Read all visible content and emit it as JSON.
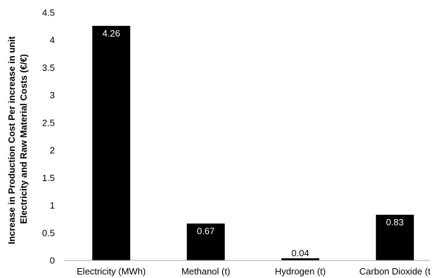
{
  "chart_data": {
    "type": "bar",
    "title": "",
    "xlabel": "",
    "ylabel": "Increase in Production Cost Per increase in unit Electricity and Raw Material Costs  (€/€)",
    "ylabel_lines": [
      "Increase in Production Cost Per increase in unit",
      "Electricity and Raw Material Costs  (€/€)"
    ],
    "categories": [
      "Electricity (MWh)",
      "Methanol (t)",
      "Hydrogen (t)",
      "Carbon Dioxide (t"
    ],
    "values": [
      4.26,
      0.67,
      0.04,
      0.83
    ],
    "data_labels": [
      "4.26",
      "0.67",
      "0.04",
      "0.83"
    ],
    "ylim": [
      0,
      4.5
    ],
    "yticks": [
      "0",
      "0.5",
      "1",
      "1.5",
      "2",
      "2.5",
      "3",
      "3.5",
      "4",
      "4.5"
    ],
    "grid": false,
    "legend": "none",
    "colors": {
      "bar": "#000000",
      "axis": "#a6a6a6",
      "label_text_inside": "#ffffff",
      "label_text_outside": "#000000"
    }
  }
}
